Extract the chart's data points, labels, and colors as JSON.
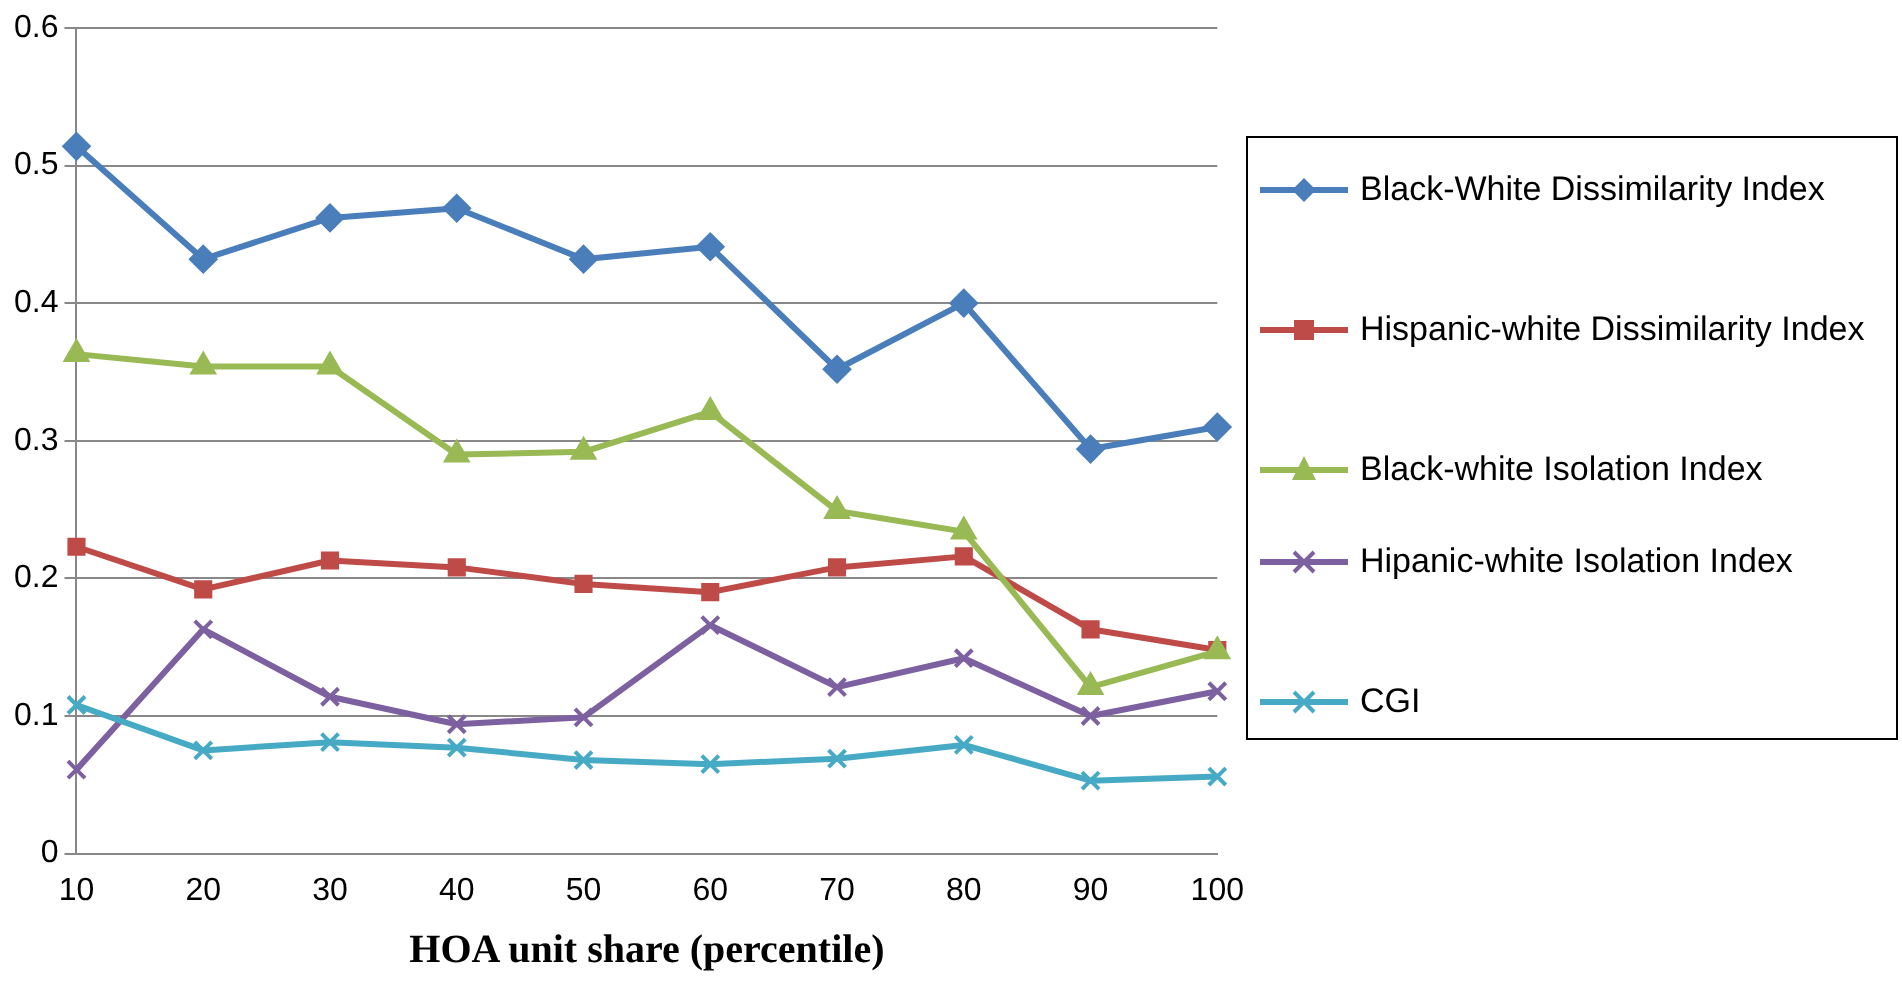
{
  "chart_data": {
    "type": "line",
    "xlabel": "HOA unit share (percentile)",
    "categories": [
      "10",
      "20",
      "30",
      "40",
      "50",
      "60",
      "70",
      "80",
      "90",
      "100"
    ],
    "ylim": [
      0,
      0.6
    ],
    "yticks": [
      0,
      0.1,
      0.2,
      0.3,
      0.4,
      0.5,
      0.6
    ],
    "grid": "y",
    "legend": "right",
    "series": [
      {
        "name": "Black-White Dissimilarity Index",
        "color": "#4a7ebb",
        "marker": "diamond",
        "values": [
          0.514,
          0.432,
          0.462,
          0.469,
          0.432,
          0.441,
          0.352,
          0.4,
          0.294,
          0.31
        ]
      },
      {
        "name": "Hispanic-white Dissimilarity Index",
        "color": "#be4b48",
        "marker": "square",
        "values": [
          0.223,
          0.192,
          0.213,
          0.208,
          0.196,
          0.19,
          0.208,
          0.216,
          0.163,
          0.148
        ]
      },
      {
        "name": "Black-white Isolation Index",
        "color": "#98b954",
        "marker": "triangle",
        "values": [
          0.363,
          0.354,
          0.354,
          0.29,
          0.292,
          0.321,
          0.249,
          0.234,
          0.121,
          0.147
        ]
      },
      {
        "name": "Hipanic-white Isolation Index",
        "color": "#7d60a0",
        "marker": "cross",
        "values": [
          0.061,
          0.163,
          0.114,
          0.094,
          0.099,
          0.166,
          0.121,
          0.142,
          0.1,
          0.118
        ]
      },
      {
        "name": "CGI",
        "color": "#46aac5",
        "marker": "cross",
        "values": [
          0.108,
          0.075,
          0.081,
          0.077,
          0.068,
          0.065,
          0.069,
          0.079,
          0.053,
          0.056
        ]
      }
    ]
  }
}
